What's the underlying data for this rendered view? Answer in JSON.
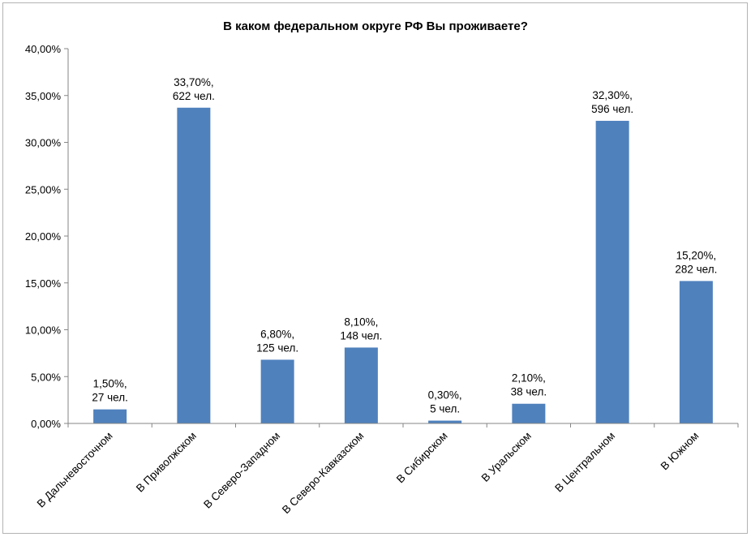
{
  "chart_data": {
    "type": "bar",
    "title": "В каком федеральном округе РФ Вы проживаете?",
    "categories": [
      "В Дальневосточном",
      "В Приволжском",
      "В Северо-Западном",
      "В Северо-Кавказском",
      "В Сибирском",
      "В Уральском",
      "В Центральном",
      "В Южном"
    ],
    "values": [
      1.5,
      33.7,
      6.8,
      8.1,
      0.3,
      2.1,
      32.3,
      15.2
    ],
    "data_labels": [
      [
        "1,50%,",
        "27 чел."
      ],
      [
        "33,70%,",
        "622 чел."
      ],
      [
        "6,80%,",
        "125 чел."
      ],
      [
        "8,10%,",
        "148 чел."
      ],
      [
        "0,30%,",
        "5 чел."
      ],
      [
        "2,10%,",
        "38 чел."
      ],
      [
        "32,30%,",
        "596 чел."
      ],
      [
        "15,20%,",
        "282 чел."
      ]
    ],
    "y_ticks": [
      0,
      5,
      10,
      15,
      20,
      25,
      30,
      35,
      40
    ],
    "y_tick_labels": [
      "0,00%",
      "5,00%",
      "10,00%",
      "15,00%",
      "20,00%",
      "25,00%",
      "30,00%",
      "35,00%",
      "40,00%"
    ],
    "ylim": [
      0,
      40
    ],
    "grid": false,
    "legend": "none",
    "bar_color": "#4f81bd"
  }
}
